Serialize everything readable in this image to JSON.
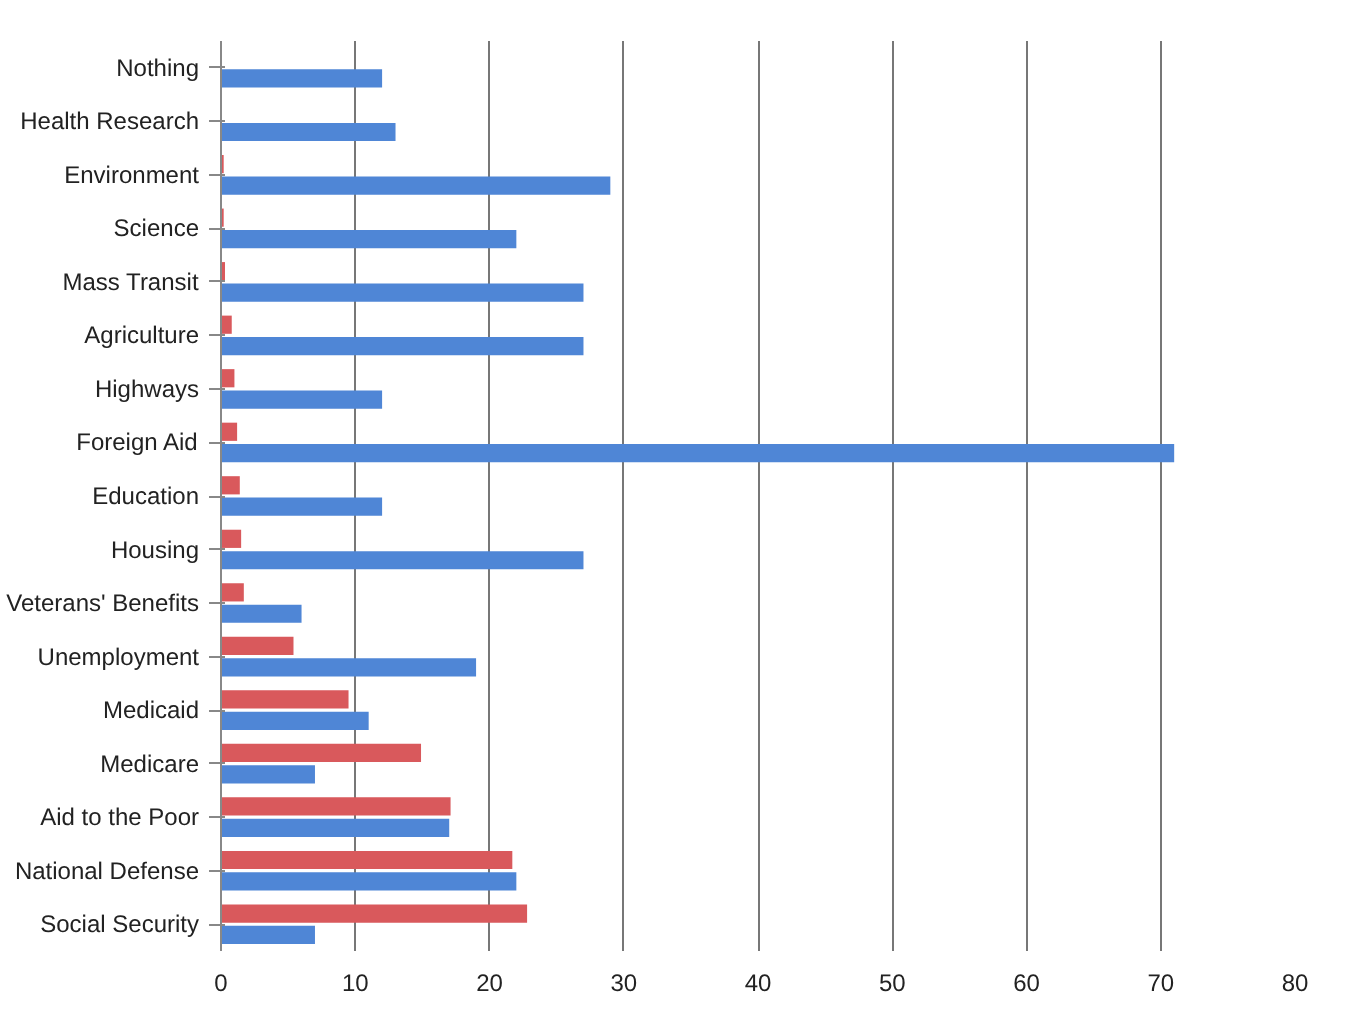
{
  "chart_data": {
    "type": "bar",
    "orientation": "horizontal",
    "categories": [
      "Nothing",
      "Health Research",
      "Environment",
      "Science",
      "Mass Transit",
      "Agriculture",
      "Highways",
      "Foreign Aid",
      "Education",
      "Housing",
      "Veterans' Benefits",
      "Unemployment",
      "Medicaid",
      "Medicare",
      "Aid to the Poor",
      "National Defense",
      "Social Security"
    ],
    "series": [
      {
        "color": "#d9595c",
        "values": [
          null,
          null,
          0.2,
          0.2,
          0.3,
          0.8,
          1.0,
          1.2,
          1.4,
          1.5,
          1.7,
          5.4,
          9.5,
          14.9,
          17.1,
          21.7,
          22.8
        ]
      },
      {
        "color": "#4f86d6",
        "values": [
          12,
          13,
          29,
          22,
          27,
          27,
          12,
          71,
          12,
          27,
          6,
          19,
          11,
          7,
          17,
          22,
          7
        ]
      }
    ],
    "xlim": [
      0,
      80
    ],
    "xticks": [
      0,
      10,
      20,
      30,
      40,
      50,
      60,
      70,
      80
    ],
    "grid": "x"
  }
}
